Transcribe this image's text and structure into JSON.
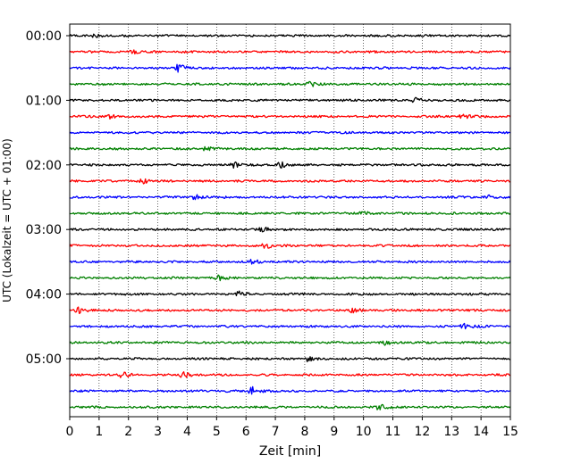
{
  "chart_data": {
    "type": "line",
    "subtype": "seismogram-helicorder",
    "title": "",
    "xlabel": "Zeit  [min]",
    "ylabel": "UTC (Lokalzeit = UTC + 01:00)",
    "xlim": [
      0,
      15
    ],
    "x_ticks": [
      0,
      1,
      2,
      3,
      4,
      5,
      6,
      7,
      8,
      9,
      10,
      11,
      12,
      13,
      14,
      15
    ],
    "x_tick_labels": [
      "0",
      "1",
      "2",
      "3",
      "4",
      "5",
      "6",
      "7",
      "8",
      "9",
      "10",
      "11",
      "12",
      "13",
      "14",
      "15"
    ],
    "vertical_grid": true,
    "vertical_grid_style": "dotted",
    "minutes_per_line": 15,
    "lines_start": "00:00",
    "line_count": 24,
    "y_tick_labels": [
      "00:00",
      "01:00",
      "02:00",
      "03:00",
      "04:00",
      "05:00"
    ],
    "y_tick_line_indices": [
      0,
      4,
      8,
      12,
      16,
      20
    ],
    "trace_color_cycle": [
      "#000000",
      "#ff0000",
      "#0000ff",
      "#008000"
    ],
    "events": [
      {
        "line": 0,
        "x": 0.9,
        "amp": 0.25
      },
      {
        "line": 1,
        "x": 2.2,
        "amp": 0.3
      },
      {
        "line": 2,
        "x": 3.7,
        "amp": 0.55
      },
      {
        "line": 3,
        "x": 8.2,
        "amp": 0.3
      },
      {
        "line": 4,
        "x": 11.8,
        "amp": 0.3
      },
      {
        "line": 5,
        "x": 1.4,
        "amp": 0.25
      },
      {
        "line": 5,
        "x": 13.4,
        "amp": 0.25
      },
      {
        "line": 7,
        "x": 4.7,
        "amp": 0.3
      },
      {
        "line": 8,
        "x": 5.6,
        "amp": 0.3
      },
      {
        "line": 8,
        "x": 7.2,
        "amp": 0.3
      },
      {
        "line": 9,
        "x": 2.5,
        "amp": 0.25
      },
      {
        "line": 10,
        "x": 4.3,
        "amp": 0.3
      },
      {
        "line": 10,
        "x": 14.2,
        "amp": 0.25
      },
      {
        "line": 11,
        "x": 10.0,
        "amp": 0.25
      },
      {
        "line": 12,
        "x": 6.6,
        "amp": 0.3
      },
      {
        "line": 13,
        "x": 6.7,
        "amp": 0.35
      },
      {
        "line": 14,
        "x": 6.2,
        "amp": 0.3
      },
      {
        "line": 15,
        "x": 5.1,
        "amp": 0.35
      },
      {
        "line": 16,
        "x": 5.8,
        "amp": 0.3
      },
      {
        "line": 17,
        "x": 0.3,
        "amp": 0.35
      },
      {
        "line": 17,
        "x": 9.6,
        "amp": 0.3
      },
      {
        "line": 18,
        "x": 13.4,
        "amp": 0.35
      },
      {
        "line": 19,
        "x": 10.8,
        "amp": 0.3
      },
      {
        "line": 20,
        "x": 8.1,
        "amp": 0.3
      },
      {
        "line": 21,
        "x": 1.8,
        "amp": 0.35
      },
      {
        "line": 21,
        "x": 3.9,
        "amp": 0.4
      },
      {
        "line": 22,
        "x": 6.2,
        "amp": 0.5
      },
      {
        "line": 23,
        "x": 10.6,
        "amp": 0.45
      }
    ]
  }
}
